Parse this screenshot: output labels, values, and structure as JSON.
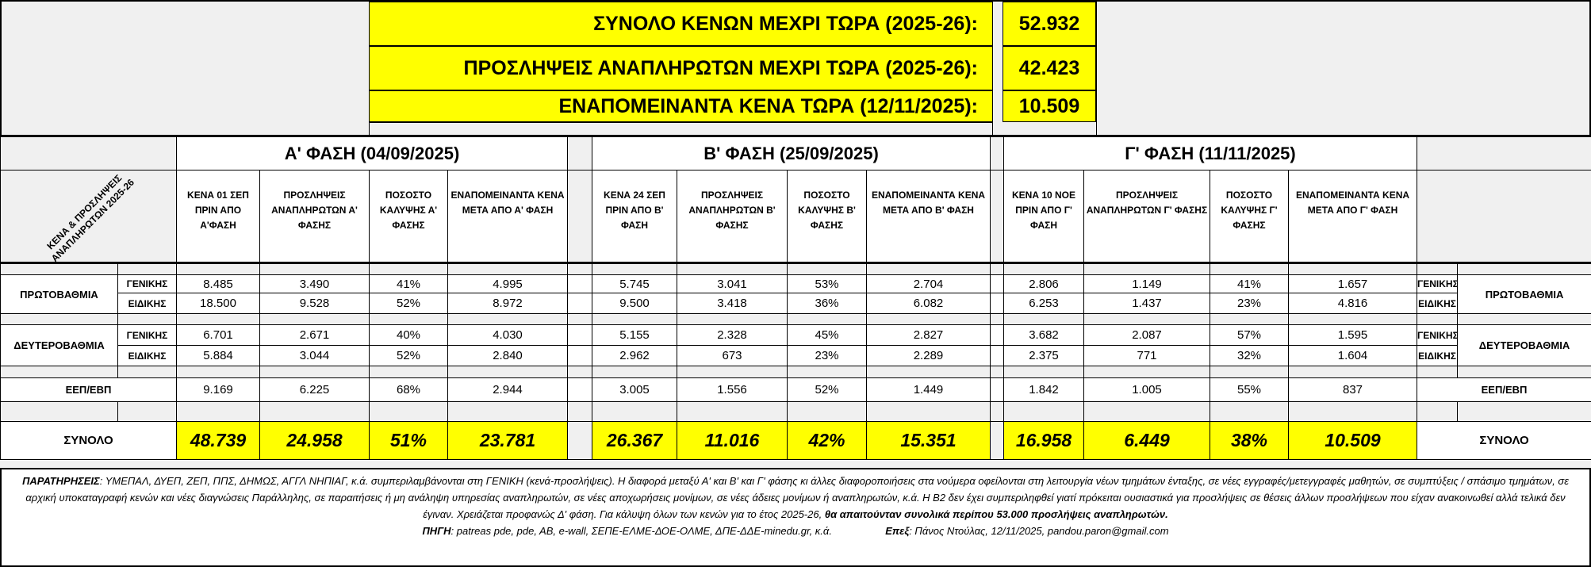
{
  "summary": [
    {
      "label": "ΣΥΝΟΛΟ ΚΕΝΩΝ ΜΕΧΡΙ ΤΩΡΑ (2025-26):",
      "value": "52.932"
    },
    {
      "label": "ΠΡΟΣΛΗΨΕΙΣ ΑΝΑΠΛΗΡΩΤΩΝ ΜΕΧΡΙ ΤΩΡΑ (2025-26):",
      "value": "42.423"
    },
    {
      "label": "ΕΝΑΠΟΜΕΙΝΑΝΤΑ ΚΕΝΑ ΤΩΡΑ (12/11/2025):",
      "value": "10.509"
    }
  ],
  "corner_label": "ΚΕΝΑ & ΠΡΟΣΛΗΨΕΙΣ ΑΝΑΠΛΗΡΩΤΩΝ 2025-26",
  "phases": [
    {
      "title": "Α' ΦΑΣΗ (04/09/2025)",
      "headers": [
        "ΚΕΝΑ 01 ΣΕΠ ΠΡΙΝ ΑΠΟ Α'ΦΑΣΗ",
        "ΠΡΟΣΛΗΨΕΙΣ ΑΝΑΠΛΗΡΩΤΩΝ Α' ΦΑΣΗΣ",
        "ΠΟΣΟΣΤΟ ΚΑΛΥΨΗΣ Α' ΦΑΣΗΣ",
        "ΕΝΑΠΟΜΕΙΝΑΝΤΑ ΚΕΝΑ ΜΕΤΑ ΑΠΟ Α' ΦΑΣΗ"
      ]
    },
    {
      "title": "Β' ΦΑΣΗ (25/09/2025)",
      "headers": [
        "ΚΕΝΑ 24 ΣΕΠ ΠΡΙΝ ΑΠΟ Β' ΦΑΣΗ",
        "ΠΡΟΣΛΗΨΕΙΣ ΑΝΑΠΛΗΡΩΤΩΝ Β' ΦΑΣΗΣ",
        "ΠΟΣΟΣΤΟ ΚΑΛΥΨΗΣ Β' ΦΑΣΗΣ",
        "ΕΝΑΠΟΜΕΙΝΑΝΤΑ ΚΕΝΑ ΜΕΤΑ ΑΠΟ Β' ΦΑΣΗ"
      ]
    },
    {
      "title": "Γ' ΦΑΣΗ (11/11/2025)",
      "headers": [
        "ΚΕΝΑ 10 ΝΟΕ ΠΡΙΝ ΑΠΟ Γ' ΦΑΣΗ",
        "ΠΡΟΣΛΗΨΕΙΣ ΑΝΑΠΛΗΡΩΤΩΝ Γ' ΦΑΣΗΣ",
        "ΠΟΣΟΣΤΟ ΚΑΛΥΨΗΣ Γ' ΦΑΣΗΣ",
        "ΕΝΑΠΟΜΕΙΝΑΝΤΑ ΚΕΝΑ ΜΕΤΑ ΑΠΟ Γ' ΦΑΣΗ"
      ]
    }
  ],
  "groups": [
    {
      "label": "ΠΡΩΤΟΒΑΘΜΙΑ",
      "rows": [
        {
          "sub": "ΓΕΝΙΚΗΣ",
          "values": [
            "8.485",
            "3.490",
            "41%",
            "4.995",
            "5.745",
            "3.041",
            "53%",
            "2.704",
            "2.806",
            "1.149",
            "41%",
            "1.657"
          ]
        },
        {
          "sub": "ΕΙΔΙΚΗΣ",
          "values": [
            "18.500",
            "9.528",
            "52%",
            "8.972",
            "9.500",
            "3.418",
            "36%",
            "6.082",
            "6.253",
            "1.437",
            "23%",
            "4.816"
          ]
        }
      ]
    },
    {
      "label": "ΔΕΥΤΕΡΟΒΑΘΜΙΑ",
      "rows": [
        {
          "sub": "ΓΕΝΙΚΗΣ",
          "values": [
            "6.701",
            "2.671",
            "40%",
            "4.030",
            "5.155",
            "2.328",
            "45%",
            "2.827",
            "3.682",
            "2.087",
            "57%",
            "1.595"
          ]
        },
        {
          "sub": "ΕΙΔΙΚΗΣ",
          "values": [
            "5.884",
            "3.044",
            "52%",
            "2.840",
            "2.962",
            "673",
            "23%",
            "2.289",
            "2.375",
            "771",
            "32%",
            "1.604"
          ]
        }
      ]
    }
  ],
  "eep": {
    "label": "ΕΕΠ/ΕΒΠ",
    "values": [
      "9.169",
      "6.225",
      "68%",
      "2.944",
      "3.005",
      "1.556",
      "52%",
      "1.449",
      "1.842",
      "1.005",
      "55%",
      "837"
    ]
  },
  "total": {
    "label": "ΣΥΝΟΛΟ",
    "values": [
      "48.739",
      "24.958",
      "51%",
      "23.781",
      "26.367",
      "11.016",
      "42%",
      "15.351",
      "16.958",
      "6.449",
      "38%",
      "10.509"
    ]
  },
  "notes": {
    "remarks_label": "ΠΑΡΑΤΗΡΗΣΕΙΣ",
    "remarks_text": ": ΥΜΕΠΑΛ, ΔΥΕΠ, ΖΕΠ, ΠΠΣ, ΔΗΜΩΣ, ΑΓΓΛ ΝΗΠΙΑΓ, κ.ά. συμπεριλαμβάνονται στη ΓΕΝΙΚΗ (κενά-προσλήψεις). Η διαφορά μεταξύ Α' και Β' και Γ' φάσης κι άλλες διαφοροποιήσεις στα νούμερα οφείλονται στη λειτουργία νέων τμημάτων ένταξης, σε νέες εγγραφές/μετεγγραφές μαθητών, σε συμπτύξεις / σπάσιμο τμημάτων, σε αρχική υποκαταγραφή κενών και νέες διαγνώσεις Παράλληλης, σε παραιτήσεις ή μη ανάληψη υπηρεσίας αναπληρωτών, σε νέες αποχωρήσεις μονίμων, σε νέες άδειες μονίμων ή αναπληρωτών, κ.ά. Η Β2 δεν έχει συμπεριληφθεί γιατί πρόκειται ουσιαστικά για προσλήψεις σε θέσεις άλλων προσλήψεων που είχαν ανακοινωθεί αλλά τελικά δεν έγιναν. Χρειάζεται προφανώς Δ' φάση. Για  κάλυψη όλων των κενών για το έτος 2025-26,",
    "remarks_bold": "θα απαιτούνταν συνολικά περίπου 53.000 προσλήψεις αναπληρωτών.",
    "source_label": "ΠΗΓΗ",
    "source_text": ": patreas pde, pde, AB, e-wall, ΣΕΠΕ-ΕΛΜΕ-ΔΟΕ-ΟΛΜΕ, ΔΠΕ-ΔΔΕ-minedu.gr, κ.ά.",
    "author_label": "Επεξ",
    "author_text": ": Πάνος Ντούλας, 12/11/2025, pandou.paron@gmail.com"
  }
}
